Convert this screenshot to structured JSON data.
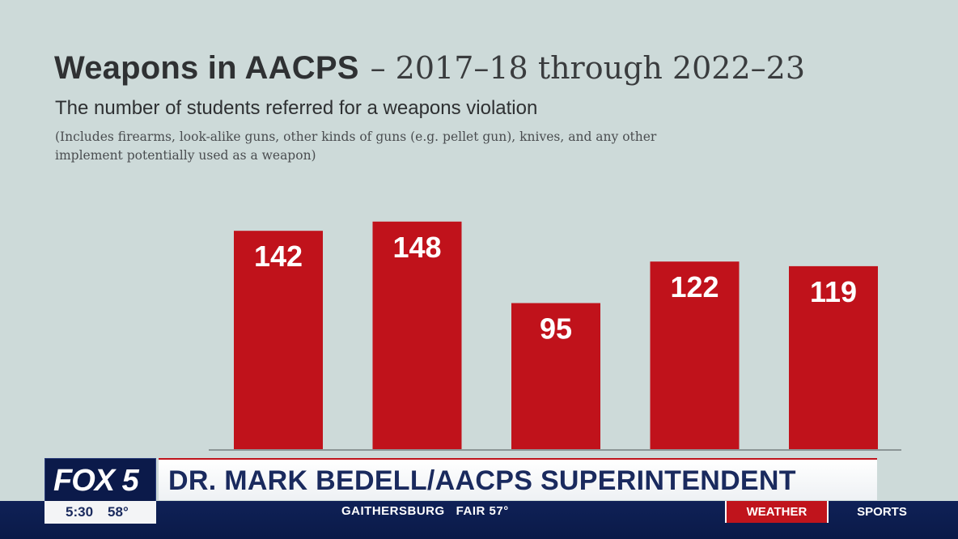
{
  "slide": {
    "title_bold": "Weapons in AACPS",
    "title_light": "– 2017–18 through 2022–23",
    "subtitle": "The number of students referred for a weapons violation",
    "note": "(Includes firearms, look-alike guns, other kinds of guns (e.g. pellet gun), knives, and any other implement potentially used as a weapon)"
  },
  "chart_data": {
    "type": "bar",
    "title": "Weapons in AACPS – 2017–18 through 2022–23",
    "subtitle": "The number of students referred for a weapons violation",
    "values": [
      142,
      148,
      95,
      122,
      119
    ],
    "data_labels": [
      "142",
      "148",
      "95",
      "122",
      "119"
    ],
    "ylim": [
      0,
      150
    ],
    "grid": false,
    "bar_color": "#c0121b"
  },
  "broadcast": {
    "logo": "FOX 5",
    "lower_third": "DR. MARK BEDELL/AACPS SUPERINTENDENT",
    "time": "5:30",
    "temperature": "58°",
    "ticker_location": "GAITHERSBURG",
    "ticker_condition": "FAIR 57°",
    "weather_label": "WEATHER",
    "sports_label": "SPORTS",
    "accent_color": "#c0141c",
    "navy_color": "#0b1a4a"
  }
}
